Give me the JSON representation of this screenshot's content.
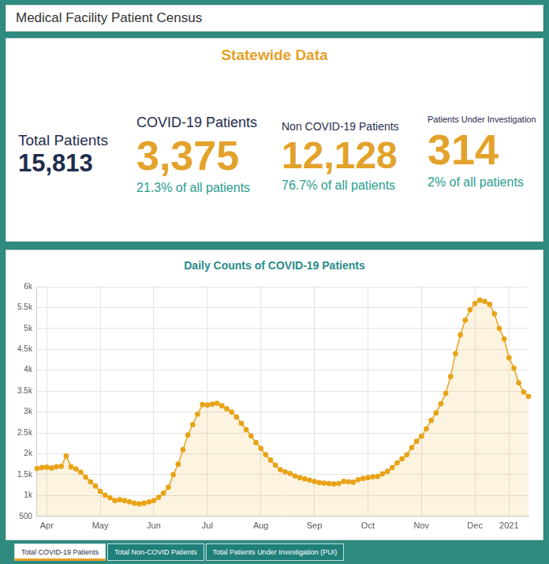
{
  "header": {
    "title": "Medical Facility Patient Census"
  },
  "stats_panel": {
    "title": "Statewide Data",
    "items": [
      {
        "label": "Total Patients",
        "value": "15,813"
      },
      {
        "label": "COVID-19 Patients",
        "value": "3,375",
        "share": "21.3% of all patients"
      },
      {
        "label": "Non COVID-19 Patients",
        "value": "12,128",
        "share": "76.7% of all patients"
      },
      {
        "label": "Patients Under Investigation",
        "value": "314",
        "share": "2% of all patients"
      }
    ]
  },
  "chart_data": {
    "type": "area",
    "title": "Daily Counts of COVID-19 Patients",
    "categories": [
      null,
      null,
      "Apr",
      null,
      null,
      null,
      null,
      null,
      null,
      null,
      null,
      null,
      null,
      "May",
      null,
      null,
      null,
      null,
      null,
      null,
      null,
      null,
      null,
      null,
      "Jun",
      null,
      null,
      null,
      null,
      null,
      null,
      null,
      null,
      null,
      null,
      "Jul",
      null,
      null,
      null,
      null,
      null,
      null,
      null,
      null,
      null,
      null,
      "Aug",
      null,
      null,
      null,
      null,
      null,
      null,
      null,
      null,
      null,
      null,
      "Sep",
      null,
      null,
      null,
      null,
      null,
      null,
      null,
      null,
      null,
      null,
      "Oct",
      null,
      null,
      null,
      null,
      null,
      null,
      null,
      null,
      null,
      null,
      "Nov",
      null,
      null,
      null,
      null,
      null,
      null,
      null,
      null,
      null,
      null,
      "Dec",
      null,
      null,
      null,
      null,
      null,
      null,
      "2021",
      null,
      null,
      null,
      null
    ],
    "values": [
      1650,
      1670,
      1680,
      1660,
      1690,
      1700,
      1950,
      1690,
      1640,
      1560,
      1440,
      1330,
      1230,
      1100,
      1010,
      950,
      880,
      900,
      880,
      850,
      820,
      800,
      820,
      850,
      880,
      960,
      1060,
      1200,
      1500,
      1750,
      2100,
      2450,
      2700,
      2950,
      3180,
      3170,
      3190,
      3210,
      3150,
      3080,
      3000,
      2880,
      2730,
      2580,
      2430,
      2270,
      2130,
      1980,
      1850,
      1730,
      1620,
      1570,
      1530,
      1470,
      1430,
      1400,
      1370,
      1340,
      1310,
      1300,
      1290,
      1280,
      1290,
      1340,
      1330,
      1320,
      1380,
      1410,
      1430,
      1450,
      1460,
      1520,
      1580,
      1670,
      1780,
      1880,
      1980,
      2150,
      2300,
      2420,
      2600,
      2800,
      2980,
      3200,
      3450,
      3850,
      4400,
      4850,
      5200,
      5450,
      5600,
      5680,
      5650,
      5580,
      5350,
      5000,
      4750,
      4300,
      4050,
      3700,
      3480,
      3375
    ],
    "color": "#e8a317",
    "marker": "circle",
    "ylim": [
      500,
      6000
    ],
    "yticks": [
      500,
      {
        "value": 1000,
        "label": "1k"
      },
      {
        "value": 1500,
        "label": "1.5k"
      },
      {
        "value": 2000,
        "label": "2k"
      },
      {
        "value": 2500,
        "label": "2.5k"
      },
      {
        "value": 3000,
        "label": "3k"
      },
      {
        "value": 3500,
        "label": "3.5k"
      },
      {
        "value": 4000,
        "label": "4k"
      },
      {
        "value": 4500,
        "label": "4.5k"
      },
      {
        "value": 5000,
        "label": "5k"
      },
      {
        "value": 5500,
        "label": "5.5k"
      },
      {
        "value": 6000,
        "label": "6k"
      }
    ],
    "grid": true
  },
  "tabs": [
    "Total COVID-19 Patients",
    "Total Non-COVID Patients",
    "Total Patients Under Investigation (PUI)"
  ]
}
